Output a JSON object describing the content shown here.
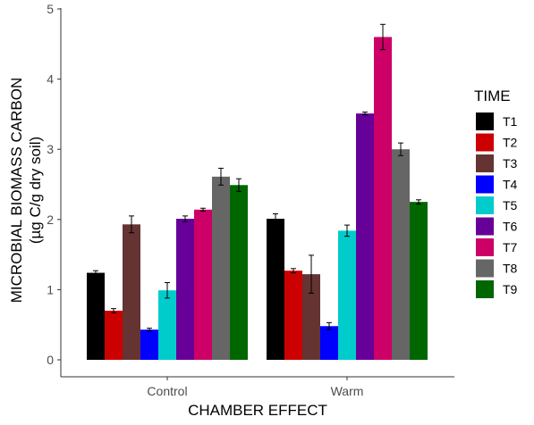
{
  "chart_data": {
    "type": "bar",
    "xlabel": "CHAMBER EFFECT",
    "ylabel": "MICROBIAL BIOMASS CARBON",
    "ylabel_sub": "(µg C/g dry soil)",
    "categories": [
      "Control",
      "Warm"
    ],
    "ylim": [
      0,
      5
    ],
    "yticks": [
      "0",
      "1",
      "2",
      "3",
      "4",
      "5"
    ],
    "grid": false,
    "legend": {
      "title": "TIME",
      "position": "right"
    },
    "series": [
      {
        "name": "T1",
        "color": "#000000",
        "values": [
          1.24,
          2.01
        ],
        "errors": [
          0.03,
          0.07
        ]
      },
      {
        "name": "T2",
        "color": "#cc0000",
        "values": [
          0.7,
          1.27
        ],
        "errors": [
          0.03,
          0.03
        ]
      },
      {
        "name": "T3",
        "color": "#663333",
        "values": [
          1.93,
          1.22
        ],
        "errors": [
          0.12,
          0.27
        ]
      },
      {
        "name": "T4",
        "color": "#0000ff",
        "values": [
          0.43,
          0.48
        ],
        "errors": [
          0.02,
          0.05
        ]
      },
      {
        "name": "T5",
        "color": "#00cccc",
        "values": [
          0.99,
          1.84
        ],
        "errors": [
          0.11,
          0.08
        ]
      },
      {
        "name": "T6",
        "color": "#660099",
        "values": [
          2.01,
          3.51
        ],
        "errors": [
          0.04,
          0.02
        ]
      },
      {
        "name": "T7",
        "color": "#cc0066",
        "values": [
          2.14,
          4.6
        ],
        "errors": [
          0.02,
          0.18
        ]
      },
      {
        "name": "T8",
        "color": "#666666",
        "values": [
          2.61,
          3.0
        ],
        "errors": [
          0.12,
          0.09
        ]
      },
      {
        "name": "T9",
        "color": "#006600",
        "values": [
          2.49,
          2.25
        ],
        "errors": [
          0.09,
          0.03
        ]
      }
    ]
  }
}
